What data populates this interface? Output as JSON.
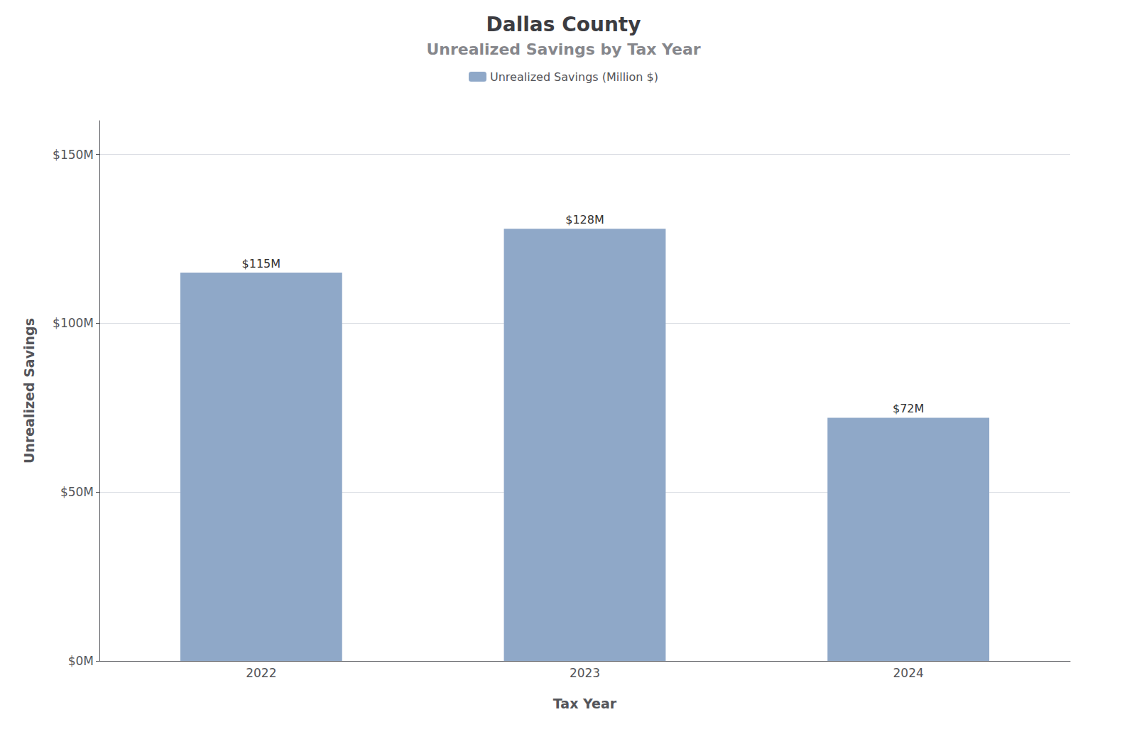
{
  "chart_data": {
    "type": "bar",
    "title": "Dallas County",
    "subtitle": "Unrealized Savings by Tax Year",
    "xlabel": "Tax Year",
    "ylabel": "Unrealized Savings",
    "categories": [
      "2022",
      "2023",
      "2024"
    ],
    "series": [
      {
        "name": "Unrealized Savings (Million $)",
        "color": "#8fa8c8",
        "values": [
          115,
          128,
          72
        ],
        "value_labels": [
          "$115M",
          "$128M",
          "$72M"
        ]
      }
    ],
    "data_labels": true,
    "ylim": [
      0,
      160
    ],
    "yticks": [
      {
        "value": 0,
        "label": "$0M"
      },
      {
        "value": 50,
        "label": "$50M"
      },
      {
        "value": 100,
        "label": "$100M"
      },
      {
        "value": 150,
        "label": "$150M"
      }
    ],
    "grid": true,
    "legend": "top"
  }
}
